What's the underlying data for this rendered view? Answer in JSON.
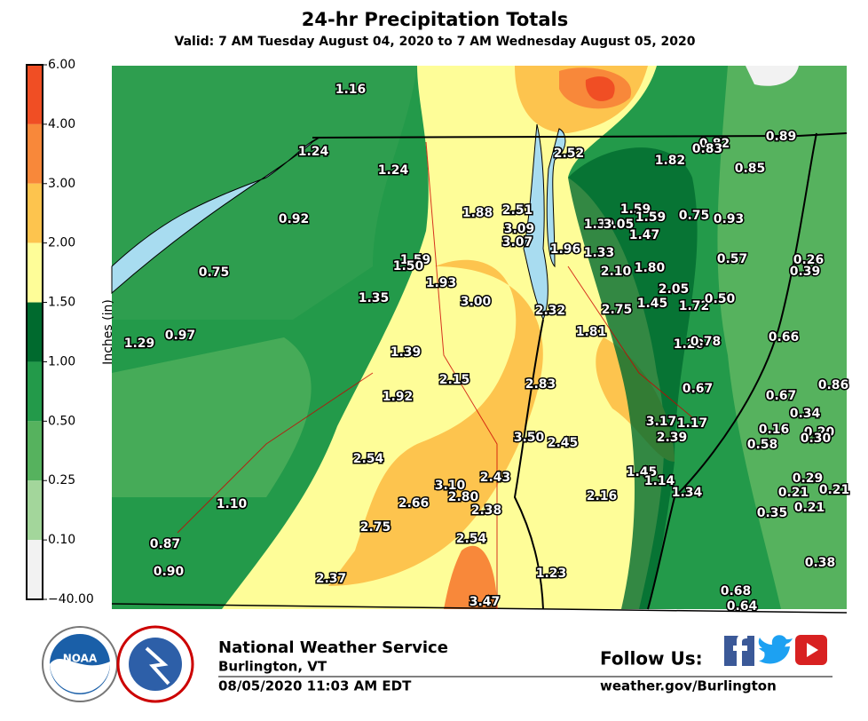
{
  "title": "24-hr Precipitation Totals",
  "subtitle": "Valid: 7 AM Tuesday August 04, 2020 to 7 AM Wednesday August 05, 2020",
  "colorbar": {
    "label": "Inches (in)",
    "ticks": [
      "6.00",
      "4.00",
      "3.00",
      "2.00",
      "1.50",
      "1.00",
      "0.50",
      "0.25",
      "0.10",
      "−40.00"
    ],
    "colors": [
      "#f04e24",
      "#f8883a",
      "#fdc44e",
      "#fefd98",
      "#006a2e",
      "#239a4a",
      "#56b25e",
      "#a3d69b",
      "#f2f2f2"
    ]
  },
  "stations": [
    "1.16",
    "1.24",
    "1.24",
    "0.92",
    "0.75",
    "1.29",
    "0.97",
    "1.35",
    "1.59",
    "1.50",
    "1.93",
    "3.00",
    "1.39",
    "1.92",
    "2.15",
    "1.88",
    "2.51",
    "3.09",
    "3.07",
    "2.52",
    "1.96",
    "1.33",
    "1.39",
    "3.05",
    "1.59",
    "1.59",
    "1.47",
    "2.10",
    "1.80",
    "2.05",
    "1.45",
    "1.72",
    "0.50",
    "2.32",
    "2.75",
    "1.81",
    "1.20",
    "0.78",
    "0.66",
    "2.83",
    "0.67",
    "0.67",
    "0.86",
    "0.34",
    "0.16",
    "0.20",
    "0.30",
    "0.58",
    "3.17",
    "1.17",
    "2.39",
    "3.50",
    "2.45",
    "2.54",
    "1.45",
    "1.14",
    "1.34",
    "2.16",
    "3.10",
    "2.43",
    "2.66",
    "2.80",
    "2.38",
    "0.29",
    "0.21",
    "0.21",
    "0.21",
    "0.35",
    "1.10",
    "2.75",
    "2.54",
    "0.87",
    "0.90",
    "0.38",
    "1.23",
    "2.37",
    "0.68",
    "0.64",
    "3.47",
    "0.82",
    "0.83",
    "1.82",
    "0.85",
    "0.89",
    "0.75",
    "0.93",
    "0.57",
    "0.26",
    "0.39"
  ],
  "footer": {
    "logo": "NOAA",
    "office": "National Weather Service",
    "location": "Burlington, VT",
    "timestamp": "08/05/2020 11:03 AM EDT",
    "follow": "Follow Us:",
    "url": "weather.gov/Burlington"
  }
}
